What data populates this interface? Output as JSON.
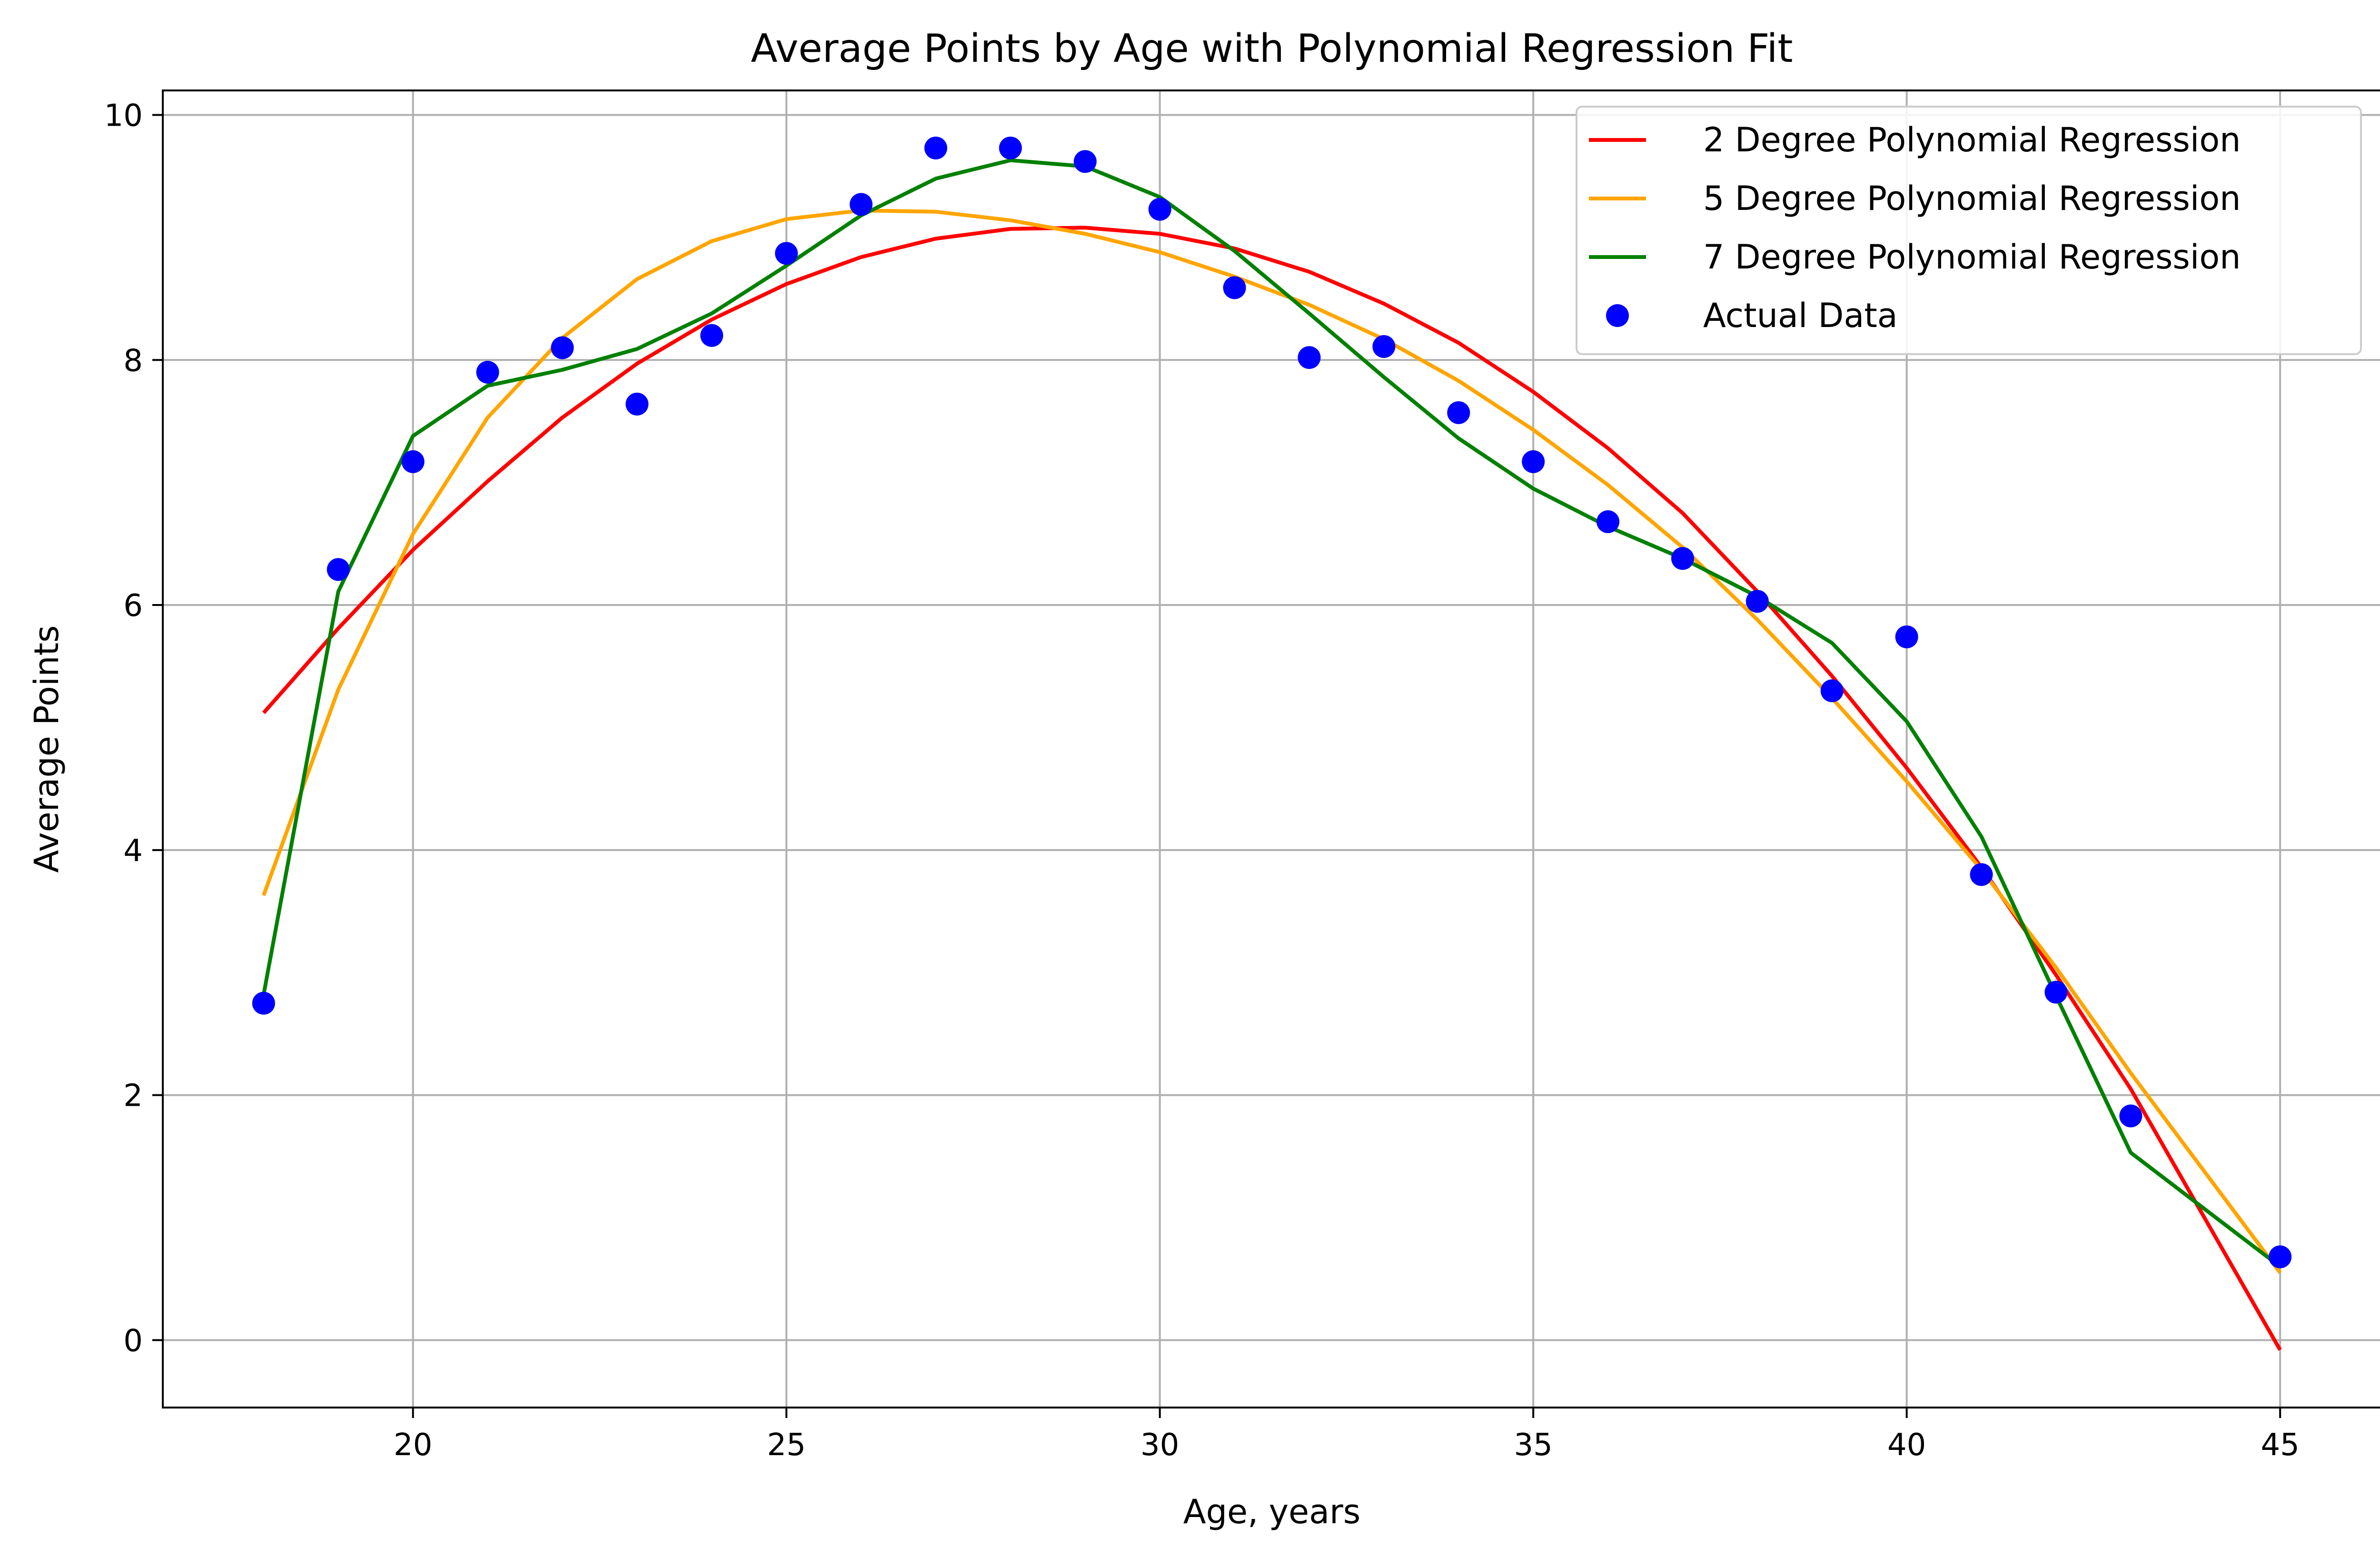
{
  "chart_data": {
    "type": "line",
    "title": "Average Points by Age with Polynomial Regression Fit",
    "xlabel": "Age, years",
    "ylabel": "Average Points",
    "xlim": [
      16.65,
      46.35
    ],
    "ylim": [
      -0.55,
      10.2
    ],
    "x_ticks": [
      20,
      25,
      30,
      35,
      40,
      45
    ],
    "y_ticks": [
      0,
      2,
      4,
      6,
      8,
      10
    ],
    "grid": true,
    "legend_position": "top-right",
    "x": [
      18,
      19,
      20,
      21,
      22,
      23,
      24,
      25,
      26,
      27,
      28,
      29,
      30,
      31,
      32,
      33,
      34,
      35,
      36,
      37,
      38,
      39,
      40,
      41,
      42,
      43,
      45
    ],
    "series": [
      {
        "name": "2 Degree Polynomial Regression",
        "kind": "line",
        "color": "#ff0000",
        "values": [
          5.12,
          5.81,
          6.45,
          7.01,
          7.53,
          7.97,
          8.33,
          8.62,
          8.84,
          8.99,
          9.07,
          9.08,
          9.03,
          8.91,
          8.72,
          8.46,
          8.14,
          7.74,
          7.28,
          6.75,
          6.11,
          5.42,
          4.67,
          3.86,
          2.98,
          2.05,
          -0.08
        ]
      },
      {
        "name": "5 Degree Polynomial Regression",
        "kind": "line",
        "color": "#ffa500",
        "values": [
          3.63,
          5.31,
          6.58,
          7.53,
          8.18,
          8.66,
          8.97,
          9.15,
          9.22,
          9.21,
          9.14,
          9.03,
          8.88,
          8.68,
          8.45,
          8.17,
          7.83,
          7.43,
          6.98,
          6.47,
          5.88,
          5.24,
          4.56,
          3.84,
          3.04,
          2.18,
          0.55
        ]
      },
      {
        "name": "7 Degree Polynomial Regression",
        "kind": "line",
        "color": "#008000",
        "values": [
          2.82,
          6.11,
          7.38,
          7.79,
          7.92,
          8.09,
          8.38,
          8.77,
          9.18,
          9.48,
          9.63,
          9.58,
          9.33,
          8.89,
          8.38,
          7.86,
          7.36,
          6.95,
          6.64,
          6.38,
          6.07,
          5.69,
          5.05,
          4.11,
          2.81,
          1.53,
          0.6
        ]
      },
      {
        "name": "Actual Data",
        "kind": "scatter",
        "color": "#0000ff",
        "values": [
          2.75,
          6.29,
          7.17,
          7.9,
          8.1,
          7.64,
          8.2,
          8.87,
          9.27,
          9.73,
          9.73,
          9.62,
          9.23,
          8.59,
          8.02,
          8.11,
          7.57,
          7.17,
          6.68,
          6.38,
          6.03,
          5.3,
          5.74,
          3.8,
          2.84,
          1.83,
          0.68
        ]
      }
    ]
  }
}
